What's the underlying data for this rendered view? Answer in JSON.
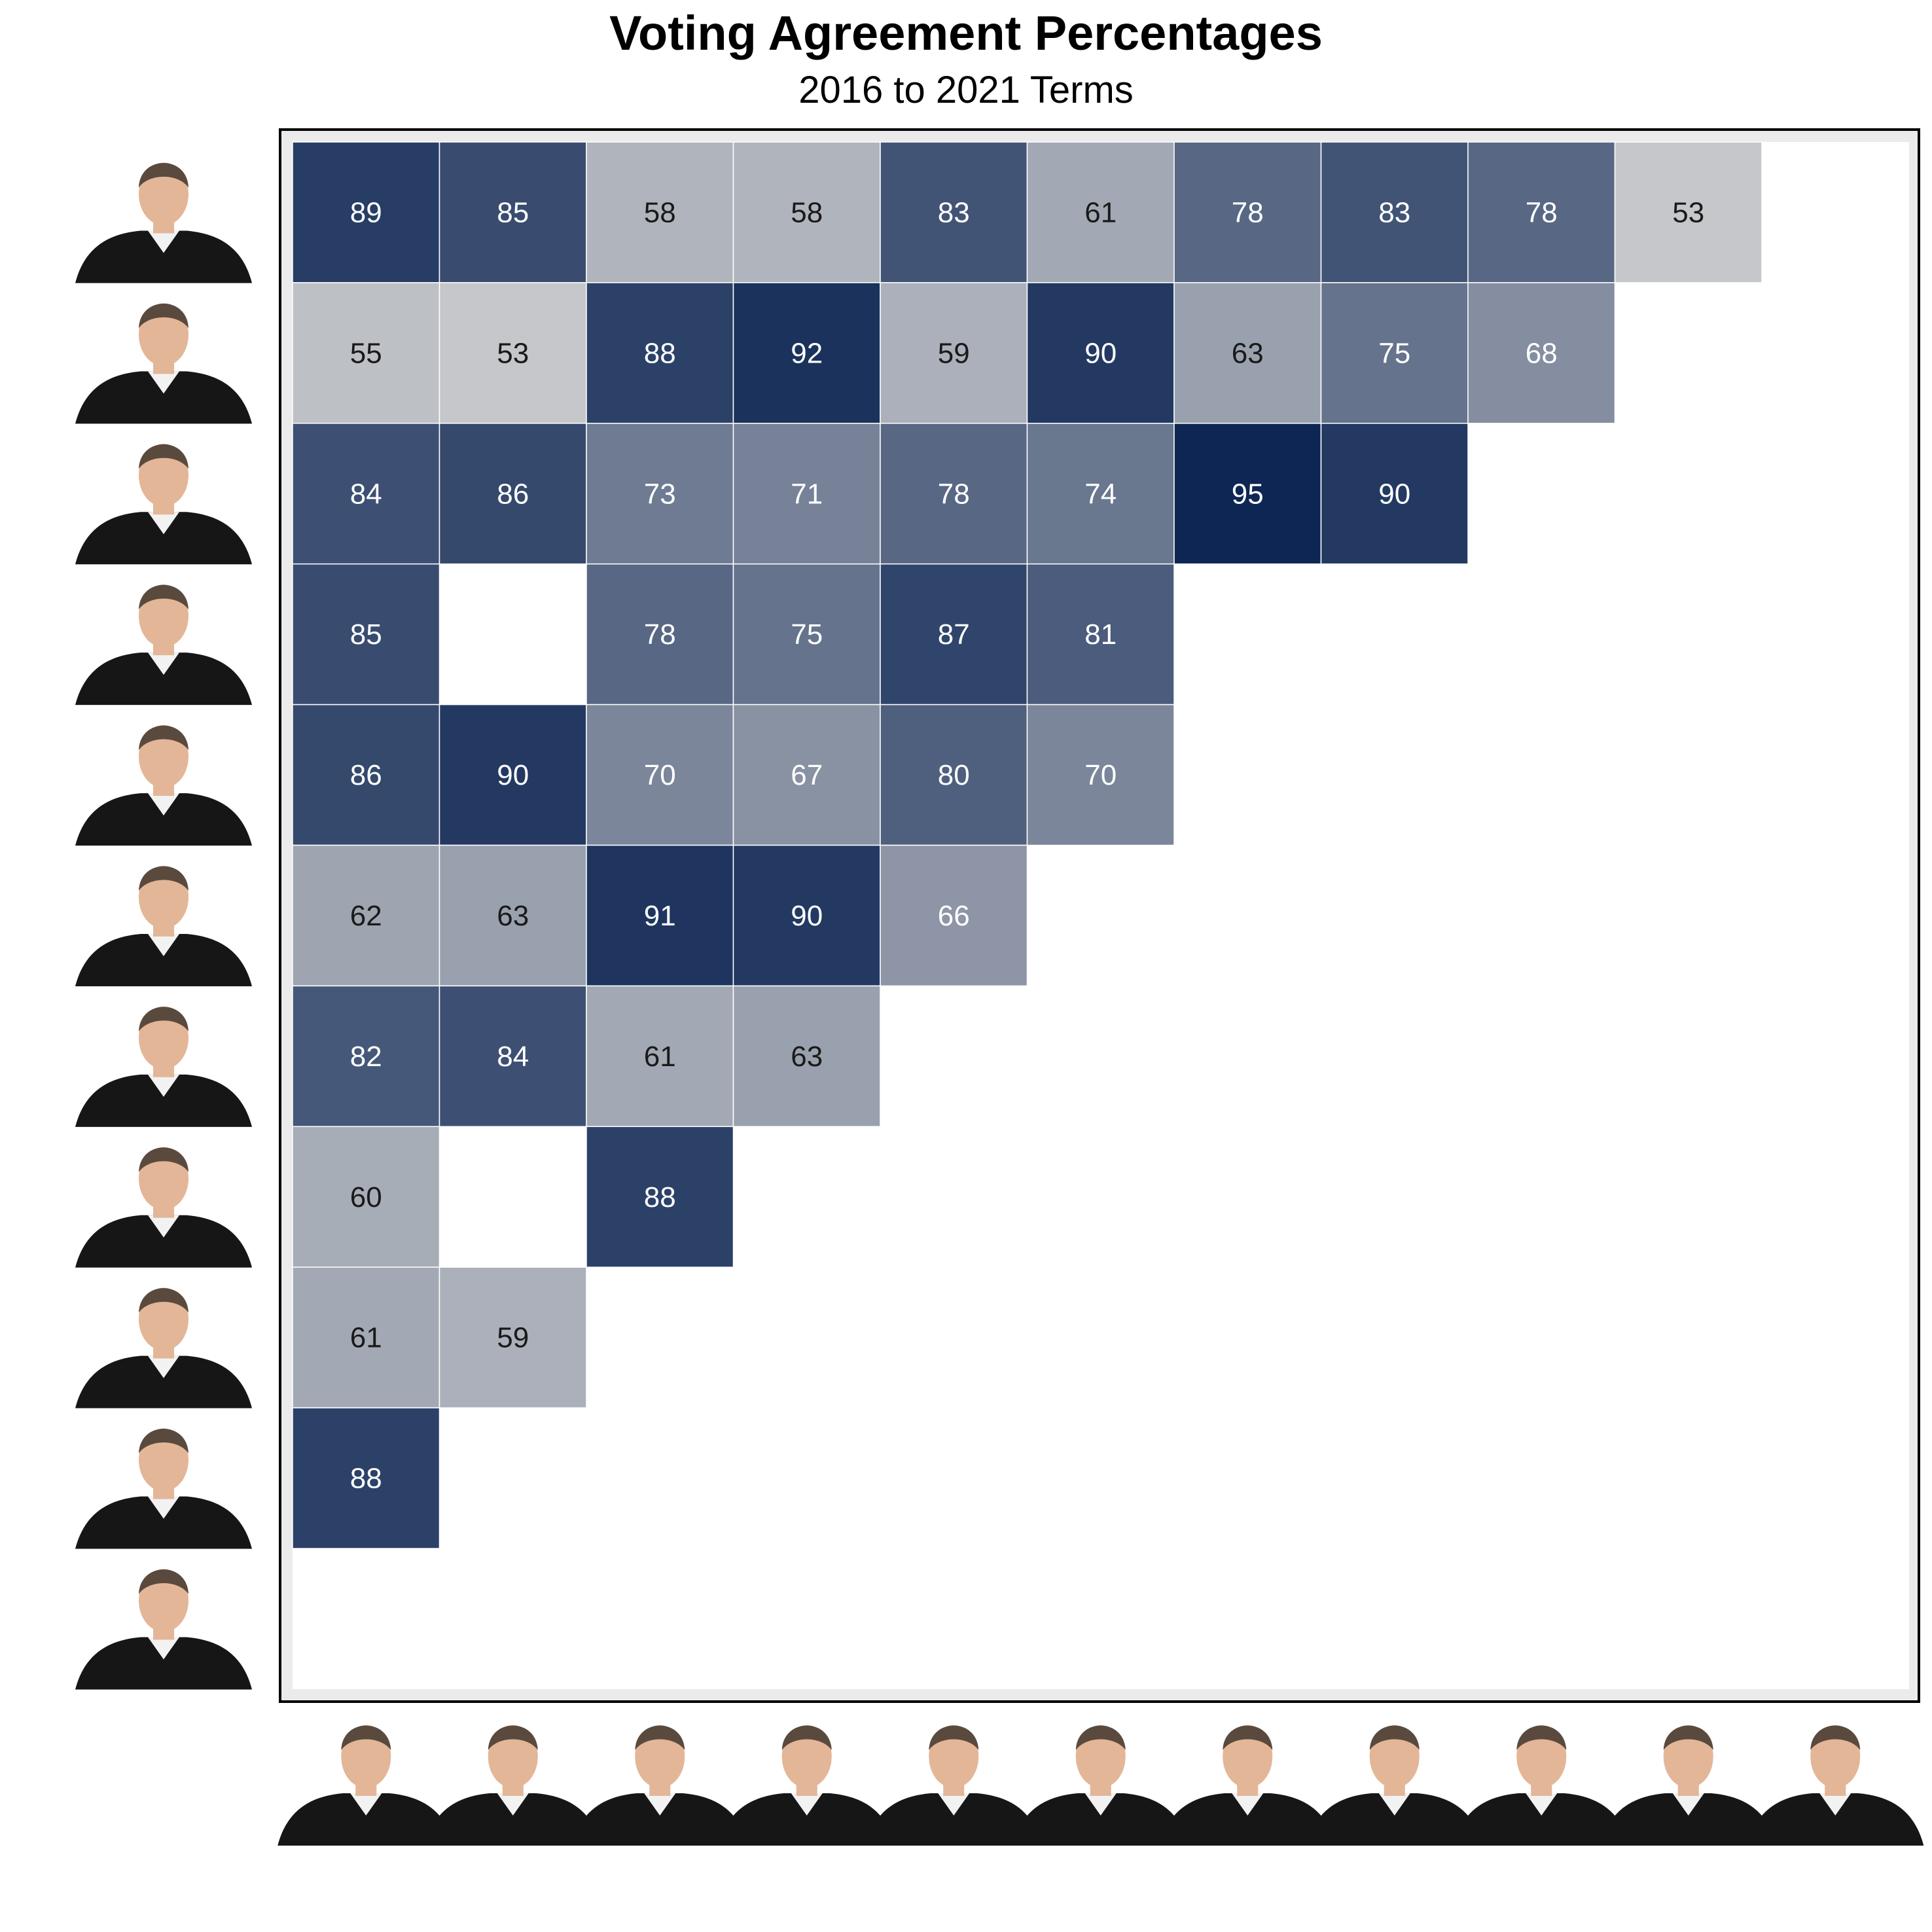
{
  "title": "Voting Agreement Percentages",
  "subtitle": "2016 to 2021 Terms",
  "chart_data": {
    "type": "heatmap",
    "title": "Voting Agreement Percentages",
    "subtitle": "2016 to 2021 Terms",
    "row_labels": [
      "justice-portrait-1",
      "justice-portrait-2",
      "justice-portrait-3",
      "justice-portrait-4",
      "justice-portrait-5",
      "justice-portrait-6",
      "justice-portrait-7",
      "justice-portrait-8",
      "justice-portrait-9",
      "justice-portrait-10",
      "justice-portrait-11"
    ],
    "column_labels": [
      "justice-portrait-11",
      "justice-portrait-10",
      "justice-portrait-9",
      "justice-portrait-8",
      "justice-portrait-7",
      "justice-portrait-6",
      "justice-portrait-5",
      "justice-portrait-4",
      "justice-portrait-3",
      "justice-portrait-2",
      "justice-portrait-1"
    ],
    "rows": [
      [
        89,
        85,
        58,
        58,
        83,
        61,
        78,
        83,
        78,
        53,
        null
      ],
      [
        55,
        53,
        88,
        92,
        59,
        90,
        63,
        75,
        68,
        null,
        null
      ],
      [
        84,
        86,
        73,
        71,
        78,
        74,
        95,
        90,
        null,
        null,
        null
      ],
      [
        85,
        null,
        78,
        75,
        87,
        81,
        null,
        null,
        null,
        null,
        null
      ],
      [
        86,
        90,
        70,
        67,
        80,
        70,
        null,
        null,
        null,
        null,
        null
      ],
      [
        62,
        63,
        91,
        90,
        66,
        null,
        null,
        null,
        null,
        null,
        null
      ],
      [
        82,
        84,
        61,
        63,
        null,
        null,
        null,
        null,
        null,
        null,
        null
      ],
      [
        60,
        null,
        88,
        null,
        null,
        null,
        null,
        null,
        null,
        null,
        null
      ],
      [
        61,
        59,
        null,
        null,
        null,
        null,
        null,
        null,
        null,
        null,
        null
      ],
      [
        88,
        null,
        null,
        null,
        null,
        null,
        null,
        null,
        null,
        null,
        null
      ],
      [
        null,
        null,
        null,
        null,
        null,
        null,
        null,
        null,
        null,
        null,
        null
      ]
    ],
    "value_unit": "percent",
    "color_scale": {
      "low_value": 50,
      "high_value": 95,
      "low_color": "#d3d3d3",
      "high_color": "#0d2654"
    },
    "label_color": {
      "dark_text": "#1a1a1a",
      "light_text": "#ffffff",
      "threshold": 64
    },
    "grid": false,
    "legend": "none"
  },
  "colors": {
    "panel_background": "#ebebeb",
    "tile_border": "#ffffff",
    "frame": "#000000",
    "robe": "#161616",
    "skin": "#e3b698"
  }
}
